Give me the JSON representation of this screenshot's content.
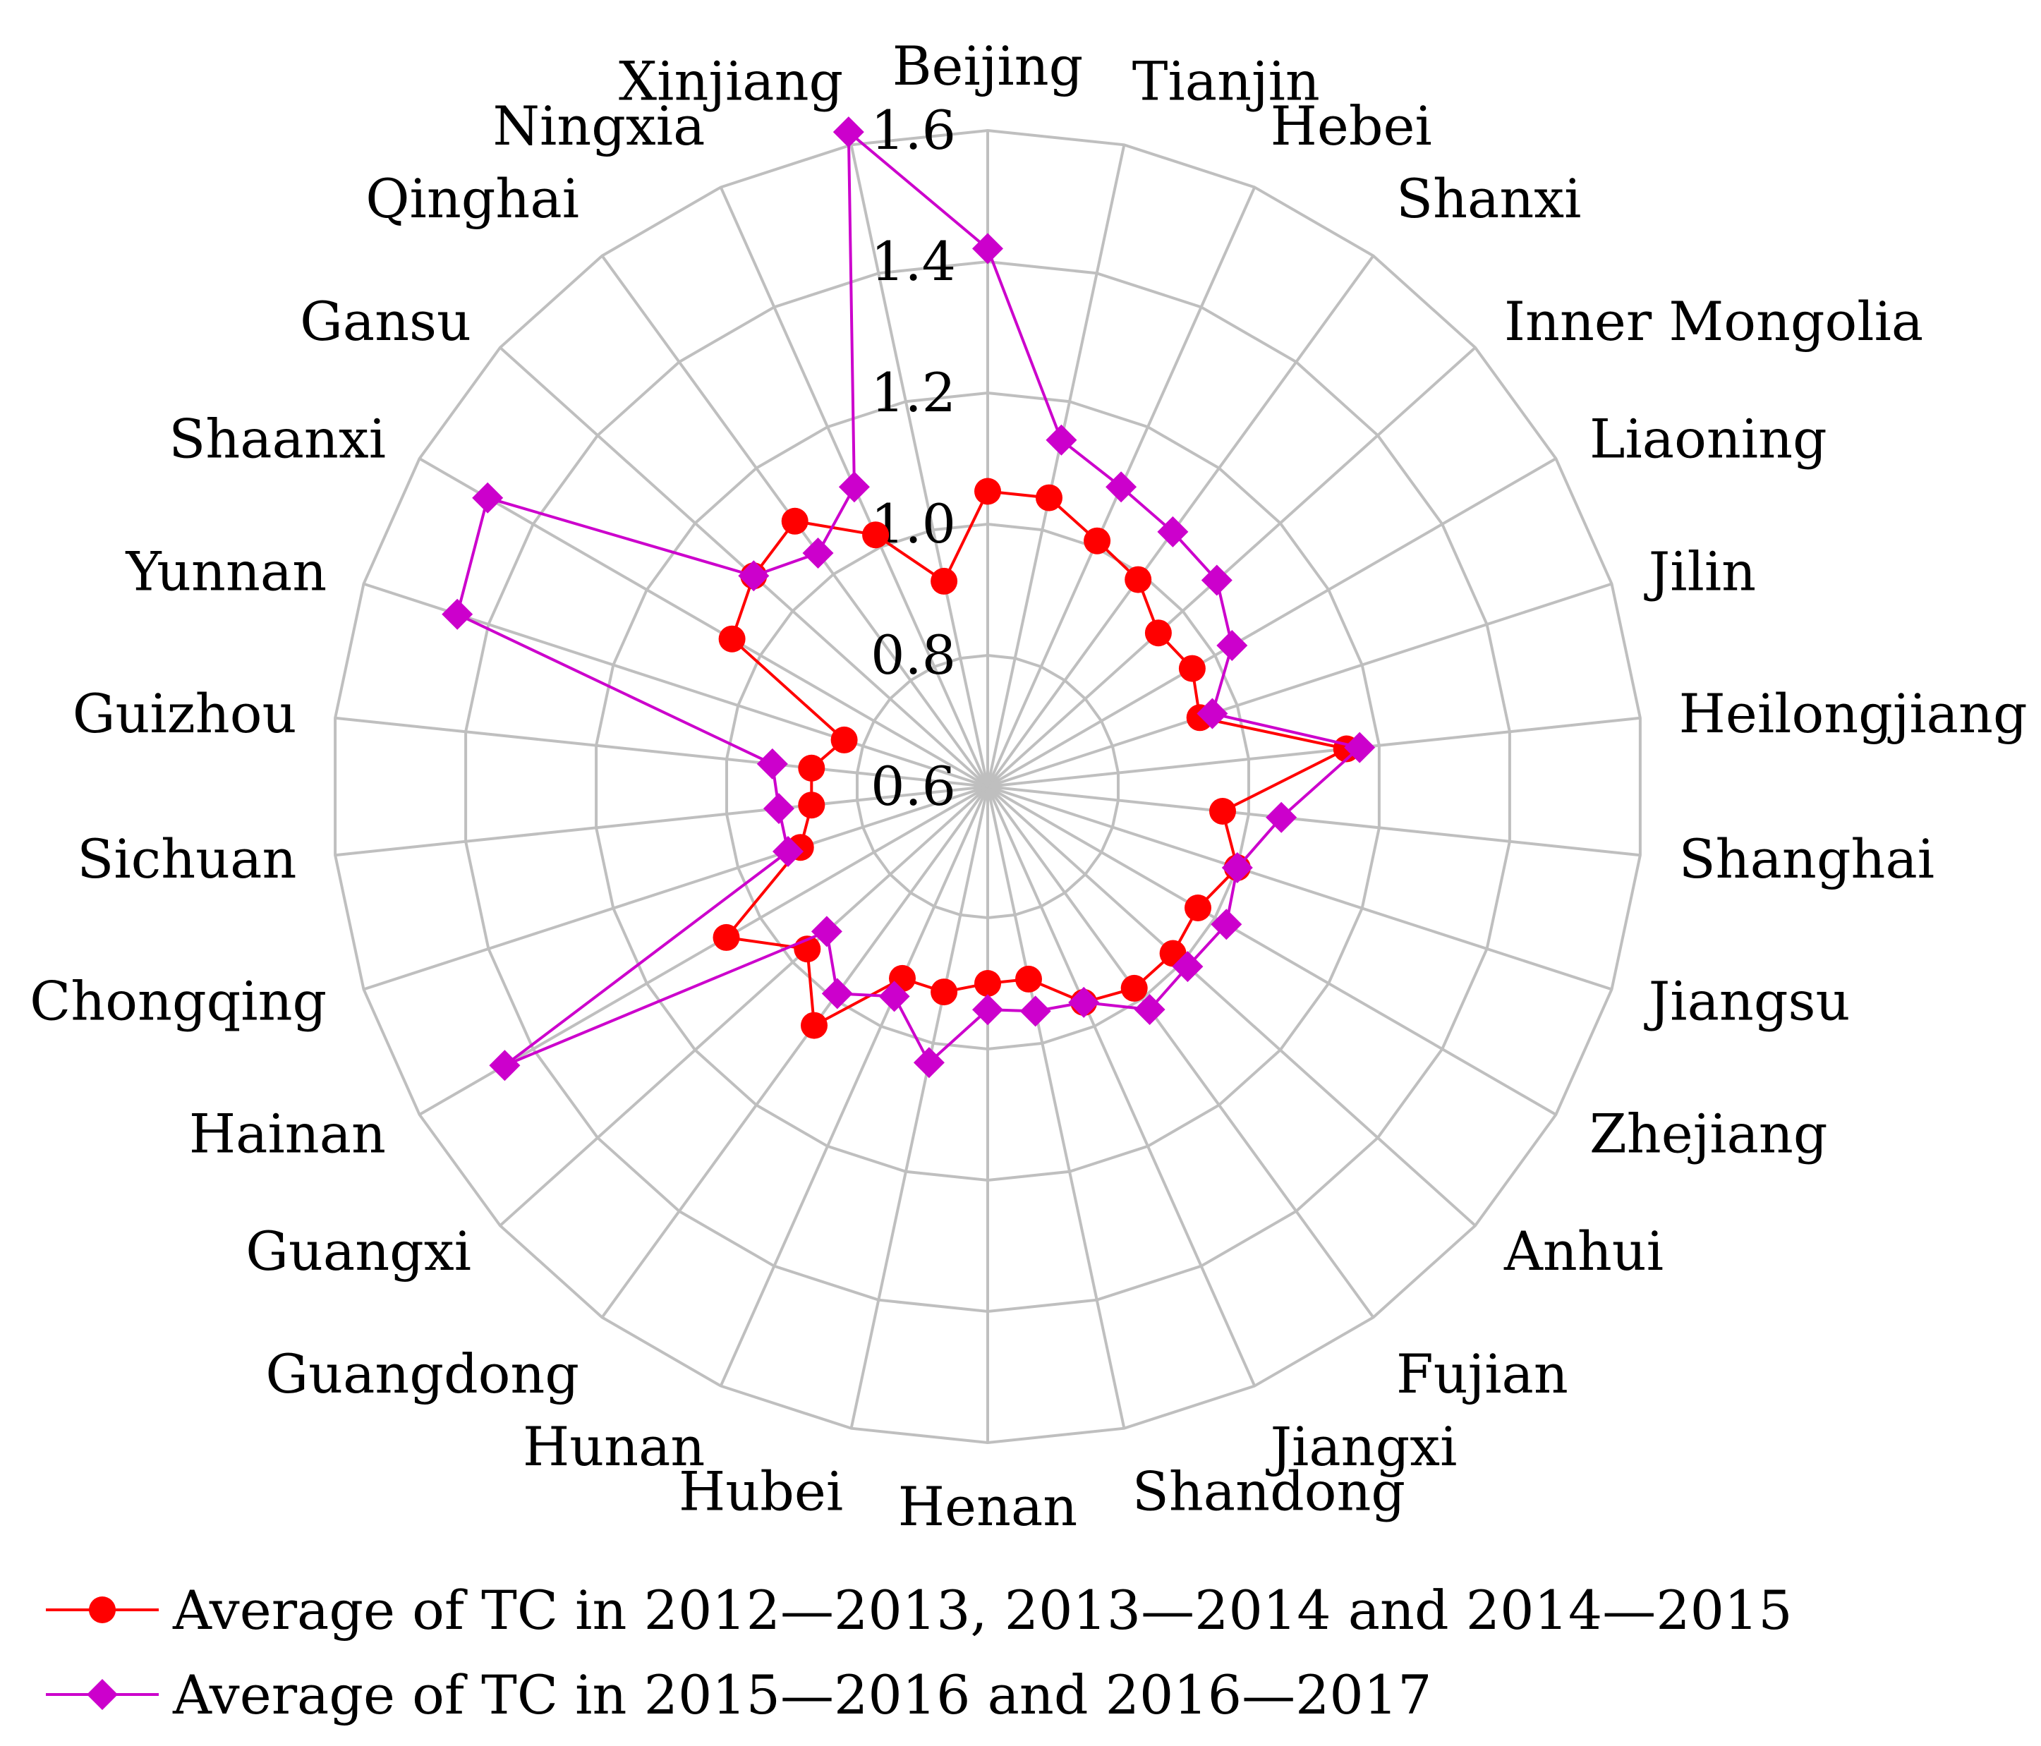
{
  "chart_data": {
    "type": "radar",
    "categories": [
      "Beijing",
      "Tianjin",
      "Hebei",
      "Shanxi",
      "Inner Mongolia",
      "Liaoning",
      "Jilin",
      "Heilongjiang",
      "Shanghai",
      "Jiangsu",
      "Zhejiang",
      "Anhui",
      "Fujian",
      "Jiangxi",
      "Shandong",
      "Henan",
      "Hubei",
      "Hunan",
      "Guangdong",
      "Guangxi",
      "Hainan",
      "Chongqing",
      "Sichuan",
      "Guizhou",
      "Yunnan",
      "Shaanxi",
      "Gansu",
      "Qinghai",
      "Ningxia",
      "Xinjiang"
    ],
    "radial_axis": {
      "min": 0.6,
      "max": 1.6,
      "ticks": [
        "0.6",
        "0.8",
        "1.0",
        "1.2",
        "1.4",
        "1.6"
      ],
      "tick_values": [
        0.6,
        0.8,
        1.0,
        1.2,
        1.4,
        1.6
      ]
    },
    "grid": true,
    "legend_placement": "bottom-left",
    "series": [
      {
        "name": "Average of TC in 2012—2013, 2013—2014 and  2014—2015",
        "color": "#ff0000",
        "marker": "circle",
        "values": [
          1.05,
          1.05,
          1.01,
          0.99,
          0.95,
          0.96,
          0.94,
          1.15,
          0.96,
          1.0,
          0.97,
          0.98,
          0.98,
          0.96,
          0.9,
          0.9,
          0.92,
          0.92,
          1.05,
          0.97,
          1.06,
          0.9,
          0.87,
          0.87,
          0.83,
          1.05,
          1.08,
          1.1,
          1.02,
          0.92
        ]
      },
      {
        "name": "Average of TC in 2015—2016 and 2016—2017",
        "color": "#cc00cc",
        "marker": "diamond",
        "values": [
          1.42,
          1.14,
          1.1,
          1.08,
          1.07,
          1.03,
          0.96,
          1.17,
          1.05,
          1.0,
          1.02,
          1.01,
          1.02,
          0.96,
          0.95,
          0.94,
          1.03,
          0.95,
          0.99,
          0.93,
          1.45,
          0.92,
          0.92,
          0.93,
          1.45,
          1.48,
          1.08,
          1.04,
          1.1,
          1.62
        ]
      }
    ]
  }
}
